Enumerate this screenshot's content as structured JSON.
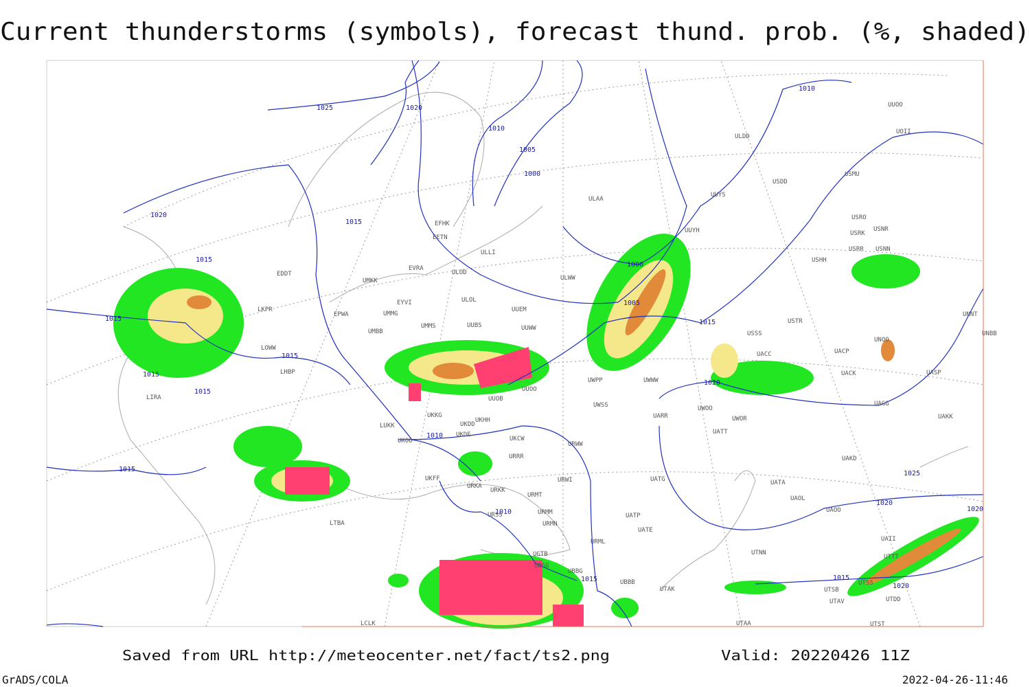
{
  "title": "Current thunderstorms (symbols), forecast thund. prob. (%, shaded)",
  "footer": {
    "source": "Saved from URL http://meteocenter.net/fact/ts2.png",
    "valid": "Valid: 20220426 11Z",
    "software": "GrADS/COLA",
    "timestamp": "2022-04-26-11:46"
  },
  "isobar_labels": [
    "1025",
    "1020",
    "1010",
    "1005",
    "1000",
    "1010",
    "1020",
    "1015",
    "1015",
    "1000",
    "1005",
    "1015",
    "1015",
    "1015",
    "1015",
    "1015",
    "1020",
    "1010",
    "1015",
    "1025",
    "1010",
    "1020",
    "1015",
    "1015",
    "1020",
    "1020"
  ],
  "stations": [
    "ULDD",
    "USDD",
    "USMU",
    "UUYS",
    "ULAA",
    "USRO",
    "USRK",
    "USNR",
    "USRR",
    "USNN",
    "UUYH",
    "USHH",
    "EFHK",
    "EETN",
    "ULLI",
    "ULOD",
    "EVRA",
    "ULWW",
    "UMKK",
    "EDDT",
    "EYVI",
    "ULOL",
    "UUEM",
    "EPWA",
    "UMMG",
    "LKPR",
    "UMMS",
    "UUOO",
    "UOII",
    "USSS",
    "USTR",
    "UNOO",
    "UNNT",
    "UNBB",
    "UUBS",
    "UUWW",
    "UMBB",
    "LOWW",
    "UACC",
    "UACP",
    "UACK",
    "UASP",
    "LHBP",
    "UWWW",
    "UWPP",
    "UUOO",
    "UUOB",
    "LIRA",
    "UWSS",
    "UARR",
    "UWOO",
    "UWOR",
    "UAKK",
    "UAGG",
    "LUKK",
    "UKHH",
    "UKDD",
    "UKKG",
    "UATT",
    "UKOO",
    "UKDE",
    "UKCW",
    "URWW",
    "UAKD",
    "URRR",
    "UKFF",
    "URKA",
    "URKK",
    "URWI",
    "UATG",
    "UATA",
    "UAOL",
    "UAOO",
    "URMT",
    "URMM",
    "URSS",
    "URMN",
    "UATP",
    "UATE",
    "LTBA",
    "URML",
    "UGTB",
    "UDSG",
    "UBBG",
    "UBBB",
    "UTAK",
    "UTNN",
    "UTSB",
    "UTAV",
    "UTSS",
    "UTAA",
    "UTST",
    "UTTT",
    "UTDD",
    "UAII",
    "LCLK"
  ]
}
